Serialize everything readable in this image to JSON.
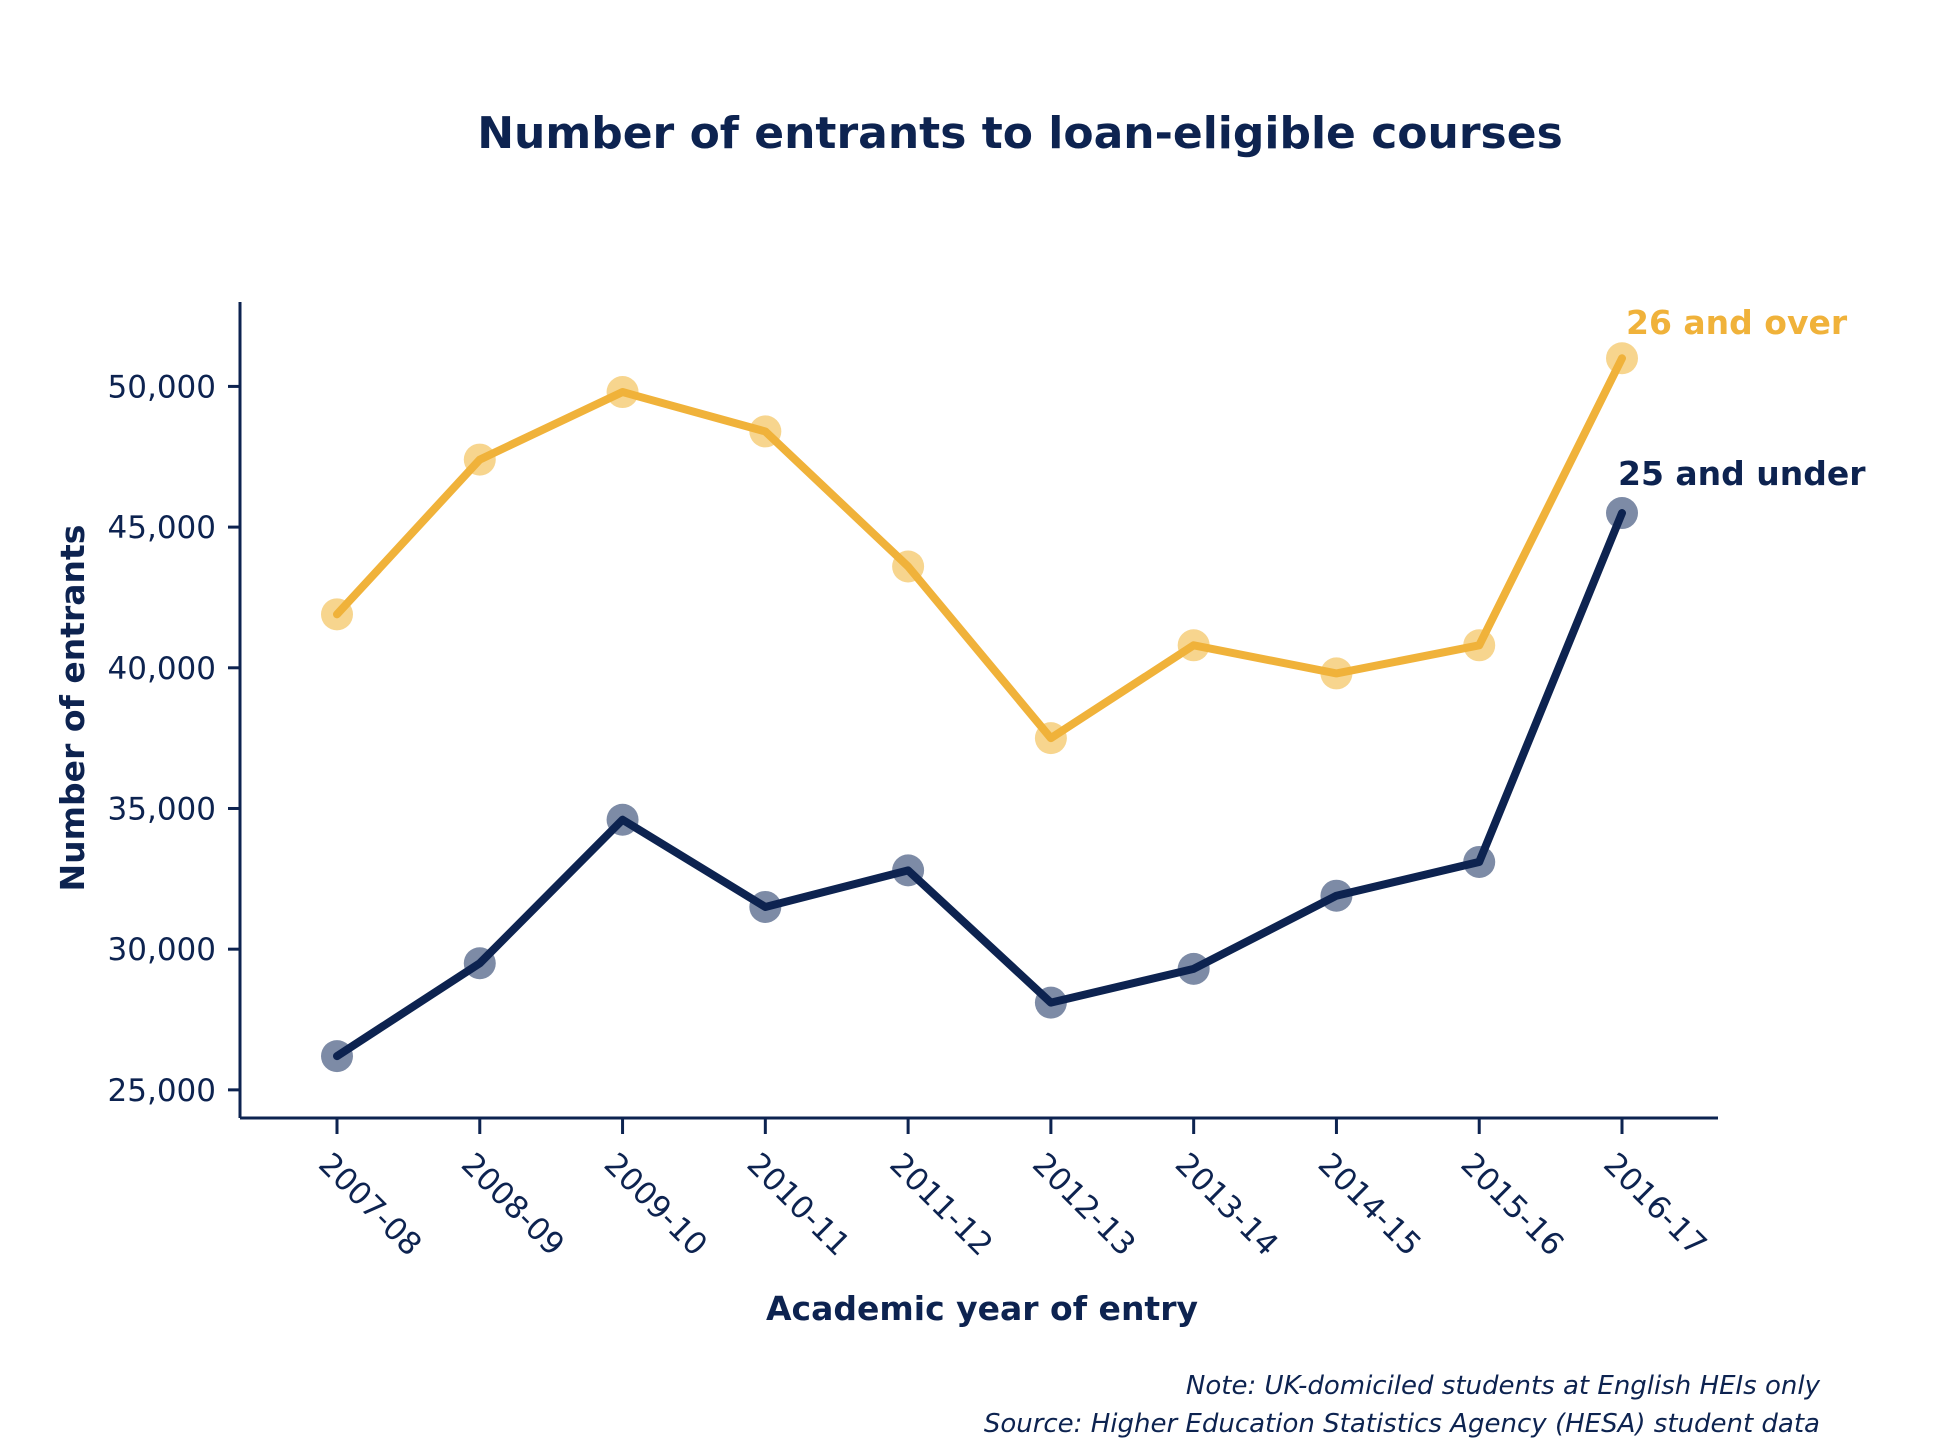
{
  "chart_data": {
    "type": "line",
    "title": "Number of entrants to loan-eligible courses",
    "xlabel": "Academic year of entry",
    "ylabel": "Number of entrants",
    "categories": [
      "2007-08",
      "2008-09",
      "2009-10",
      "2010-11",
      "2011-12",
      "2012-13",
      "2013-14",
      "2014-15",
      "2015-16",
      "2016-17"
    ],
    "ylim": [
      24000,
      53000
    ],
    "yticks": [
      25000,
      30000,
      35000,
      40000,
      45000,
      50000
    ],
    "ytick_labels": [
      "25,000",
      "30,000",
      "35,000",
      "40,000",
      "45,000",
      "50,000"
    ],
    "grid": false,
    "legend": "direct labels at line ends",
    "series": [
      {
        "name": "26 and over",
        "color": "#f0b23a",
        "marker_color": "#f7d58e",
        "values": [
          41900,
          47400,
          49800,
          48400,
          43600,
          37500,
          40800,
          39800,
          40800,
          51000
        ]
      },
      {
        "name": "25 and under",
        "color": "#0d2350",
        "marker_color": "#7d8ba6",
        "values": [
          26200,
          29500,
          34600,
          31500,
          32800,
          28100,
          29300,
          31900,
          33100,
          45500
        ]
      }
    ],
    "notes": [
      "Note: UK-domiciled students at English HEIs only",
      "Source:  Higher Education Statistics Agency (HESA) student data"
    ]
  }
}
